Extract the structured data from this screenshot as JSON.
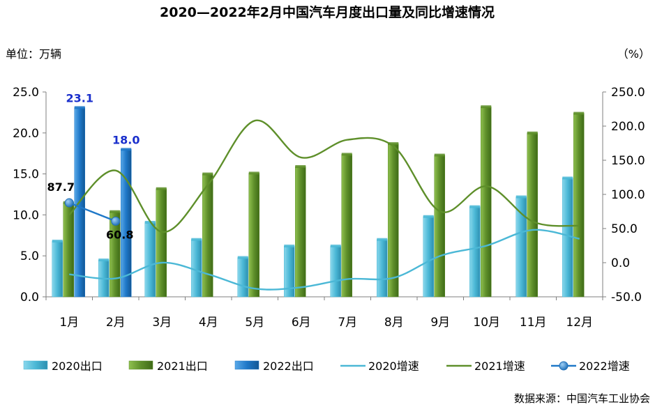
{
  "chart_data": {
    "type": "bar",
    "title": "2020—2022年2月中国汽车月度出口量及同比增速情况",
    "left_unit": "单位：万辆",
    "right_unit": "（%）",
    "source": "数据来源：中国汽车工业协会",
    "categories": [
      "1月",
      "2月",
      "3月",
      "4月",
      "5月",
      "6月",
      "7月",
      "8月",
      "9月",
      "10月",
      "11月",
      "12月"
    ],
    "ylim_left": [
      0,
      25
    ],
    "ylim_right": [
      -50,
      250
    ],
    "yticks_left": [
      "0.0",
      "5.0",
      "10.0",
      "15.0",
      "20.0",
      "25.0"
    ],
    "yticks_right": [
      "-50.0",
      "0.0",
      "50.0",
      "100.0",
      "150.0",
      "200.0",
      "250.0"
    ],
    "grid": false,
    "legend_position": "bottom",
    "bar_series": [
      {
        "name": "2020出口",
        "color": "#4bb8d6",
        "values": [
          6.8,
          4.5,
          9.1,
          7.0,
          4.8,
          6.2,
          6.2,
          7.0,
          9.8,
          11.0,
          12.2,
          14.5
        ]
      },
      {
        "name": "2021出口",
        "color": "#5e8f2a",
        "values": [
          11.5,
          10.4,
          13.2,
          15.0,
          15.1,
          15.9,
          17.4,
          18.7,
          17.3,
          23.2,
          20.0,
          22.4
        ]
      },
      {
        "name": "2022出口",
        "color": "#1f78c8",
        "values": [
          23.1,
          18.0
        ],
        "data_labels": [
          "23.1",
          "18.0"
        ]
      }
    ],
    "line_series": [
      {
        "name": "2020增速",
        "color": "#4bb8d6",
        "values": [
          -17,
          -23,
          0,
          -17,
          -38,
          -36,
          -24,
          -22,
          10,
          25,
          48,
          35
        ]
      },
      {
        "name": "2021增速",
        "color": "#5e8f2a",
        "values": [
          70,
          135,
          45,
          115,
          208,
          154,
          180,
          170,
          75,
          112,
          60,
          54
        ]
      },
      {
        "name": "2022增速",
        "color": "#1f78c8",
        "values": [
          87.7,
          60.8
        ],
        "data_labels": [
          "87.7",
          "60.8"
        ]
      }
    ]
  }
}
